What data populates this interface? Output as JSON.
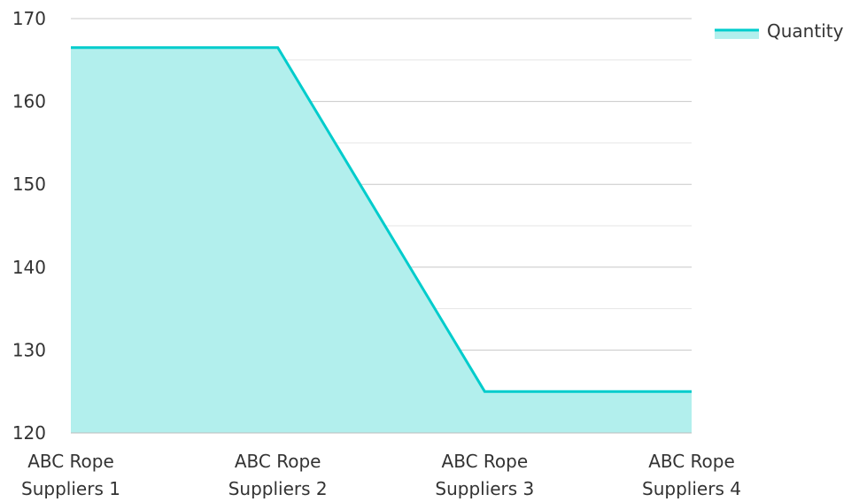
{
  "chart_data": {
    "type": "area",
    "categories": [
      [
        "ABC Rope",
        "Suppliers 1"
      ],
      [
        "ABC Rope",
        "Suppliers 2"
      ],
      [
        "ABC Rope",
        "Suppliers 3"
      ],
      [
        "ABC Rope",
        "Suppliers 4"
      ]
    ],
    "series": [
      {
        "name": "Quantity",
        "values": [
          166.5,
          166.5,
          125,
          125
        ],
        "line_color": "#00CCCC",
        "fill_color": "#B2EFED"
      }
    ],
    "ylim": [
      120,
      170
    ],
    "y_ticks": [
      120,
      130,
      140,
      150,
      160,
      170
    ],
    "y_minor_step": 5,
    "grid": true,
    "legend": {
      "position": "top-right",
      "label": "Quantity"
    },
    "xlabel": "",
    "ylabel": "",
    "title": ""
  },
  "colors": {
    "major_grid": "#c8c8c8",
    "minor_grid": "#e6e6e6",
    "axis": "#bdbdbd",
    "text": "#333333"
  }
}
